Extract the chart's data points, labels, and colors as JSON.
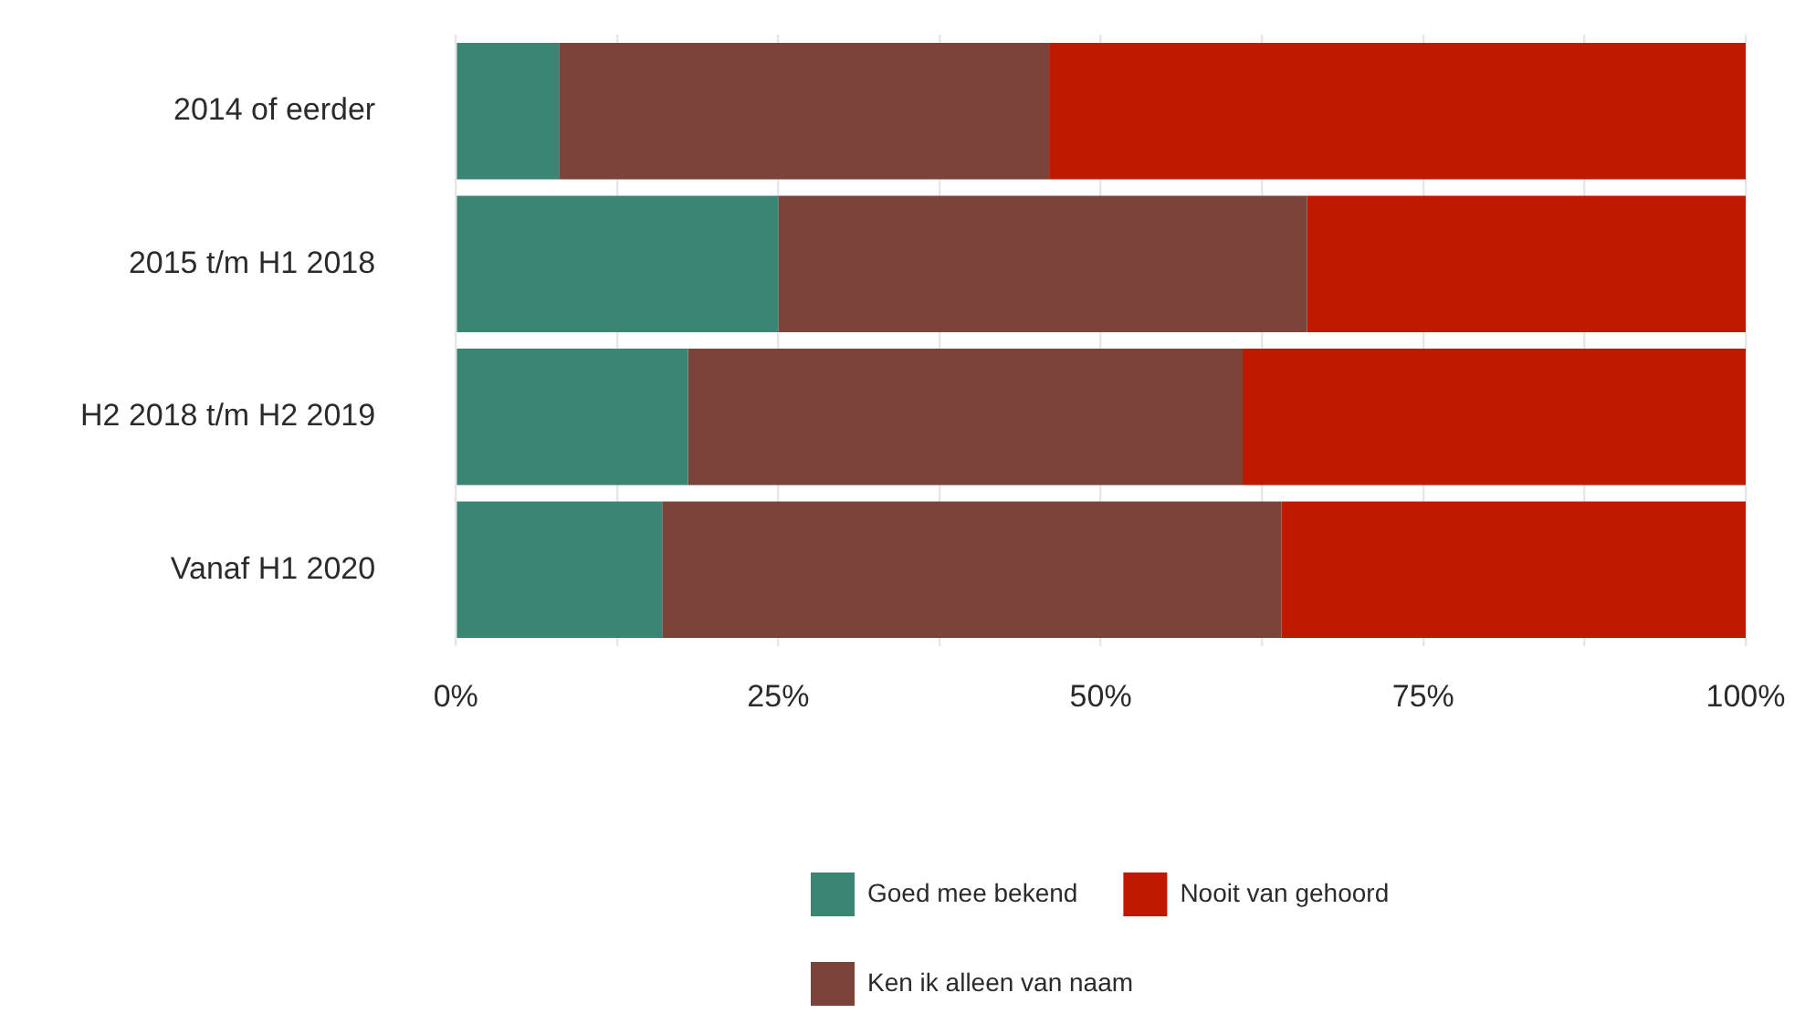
{
  "chart_data": {
    "type": "bar",
    "orientation": "horizontal",
    "stacked": true,
    "categories": [
      "2014 of eerder",
      "2015 t/m H1 2018",
      "H2 2018 t/m H2 2019",
      "Vanaf H1 2020"
    ],
    "series": [
      {
        "name": "Goed mee bekend",
        "color": "#3b8574",
        "values": [
          8,
          25,
          18,
          16
        ]
      },
      {
        "name": "Ken ik alleen van naam",
        "color": "#7c433b",
        "values": [
          38,
          41,
          43,
          48
        ]
      },
      {
        "name": "Nooit van gehoord",
        "color": "#bf1a00",
        "values": [
          54,
          34,
          39,
          36
        ]
      }
    ],
    "xlim": [
      0,
      100
    ],
    "xticks": [
      {
        "value": 0,
        "label": "0%"
      },
      {
        "value": 12.5,
        "label": null
      },
      {
        "value": 25,
        "label": "25%"
      },
      {
        "value": 37.5,
        "label": null
      },
      {
        "value": 50,
        "label": "50%"
      },
      {
        "value": 62.5,
        "label": null
      },
      {
        "value": 75,
        "label": "75%"
      },
      {
        "value": 87.5,
        "label": null
      },
      {
        "value": 100,
        "label": "100%"
      }
    ],
    "grid": "x",
    "legend": "bottom"
  }
}
